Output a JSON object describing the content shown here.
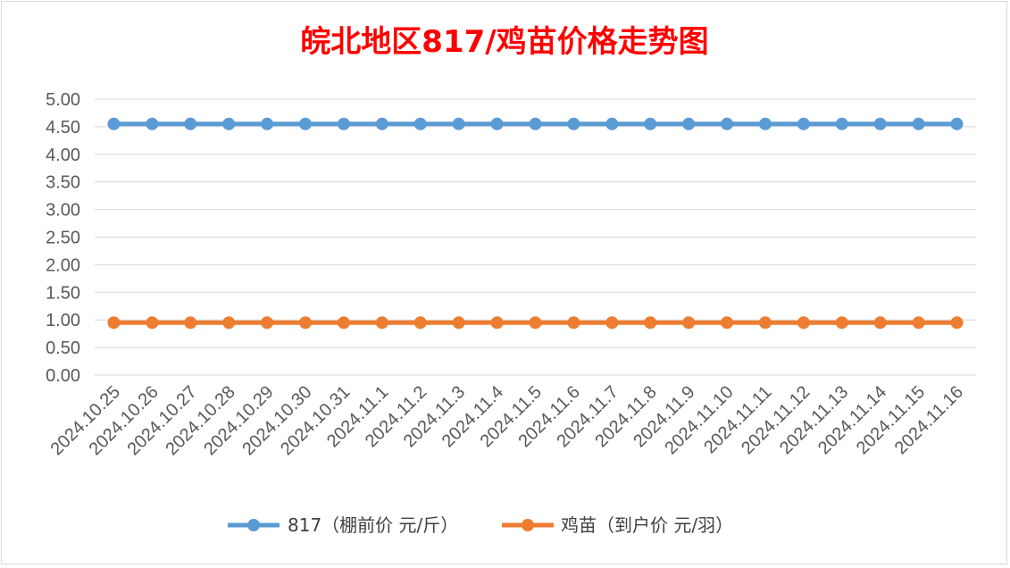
{
  "chart_data": {
    "type": "line",
    "title": "皖北地区817/鸡苗价格走势图",
    "categories": [
      "2024.10.25",
      "2024.10.26",
      "2024.10.27",
      "2024.10.28",
      "2024.10.29",
      "2024.10.30",
      "2024.10.31",
      "2024.11.1",
      "2024.11.2",
      "2024.11.3",
      "2024.11.4",
      "2024.11.5",
      "2024.11.6",
      "2024.11.7",
      "2024.11.8",
      "2024.11.9",
      "2024.11.10",
      "2024.11.11",
      "2024.11.12",
      "2024.11.13",
      "2024.11.14",
      "2024.11.15",
      "2024.11.16"
    ],
    "y_ticks": [
      "0.00",
      "0.50",
      "1.00",
      "1.50",
      "2.00",
      "2.50",
      "3.00",
      "3.50",
      "4.00",
      "4.50",
      "5.00"
    ],
    "ylim": [
      0,
      5
    ],
    "grid": true,
    "legend_position": "bottom",
    "series": [
      {
        "name": "817（棚前价 元/斤）",
        "color": "#5b9bd5",
        "values": [
          4.55,
          4.55,
          4.55,
          4.55,
          4.55,
          4.55,
          4.55,
          4.55,
          4.55,
          4.55,
          4.55,
          4.55,
          4.55,
          4.55,
          4.55,
          4.55,
          4.55,
          4.55,
          4.55,
          4.55,
          4.55,
          4.55,
          4.55
        ]
      },
      {
        "name": "鸡苗（到户价 元/羽）",
        "color": "#ed7d31",
        "values": [
          0.95,
          0.95,
          0.95,
          0.95,
          0.95,
          0.95,
          0.95,
          0.95,
          0.95,
          0.95,
          0.95,
          0.95,
          0.95,
          0.95,
          0.95,
          0.95,
          0.95,
          0.95,
          0.95,
          0.95,
          0.95,
          0.95,
          0.95
        ]
      }
    ]
  }
}
